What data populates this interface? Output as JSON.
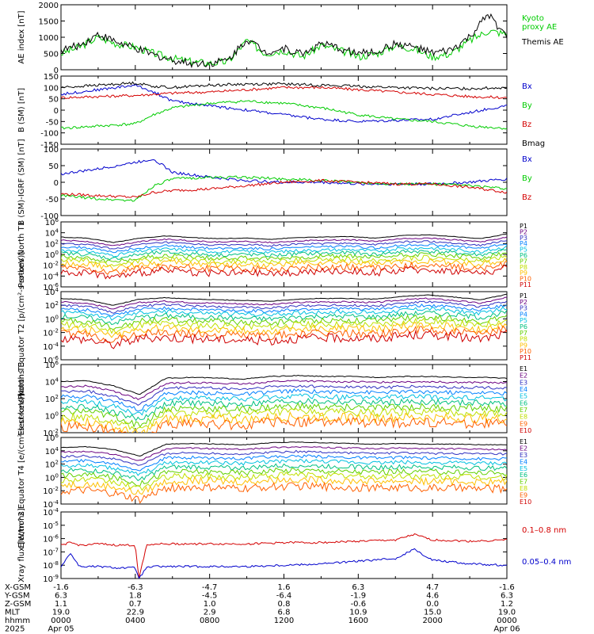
{
  "colors": {
    "black": "#000000",
    "red": "#d40000",
    "blue": "#0000cc",
    "green": "#00cc00",
    "p_ramp": [
      "#000000",
      "#6a0080",
      "#3030c0",
      "#0080ff",
      "#00c0e0",
      "#00c080",
      "#60d000",
      "#c0e000",
      "#ffc000",
      "#ff6000",
      "#d00000"
    ]
  },
  "chart_data": [
    {
      "type": "line",
      "ylabel": "AE index [nT]",
      "ylim": [
        0,
        2000
      ],
      "yticks": [
        {
          "v": 0,
          "t": "0"
        },
        {
          "v": 500,
          "t": "500"
        },
        {
          "v": 1000,
          "t": "1000"
        },
        {
          "v": 1500,
          "t": "1500"
        },
        {
          "v": 2000,
          "t": "2000"
        }
      ],
      "x": [
        0,
        1,
        2,
        3,
        4,
        5,
        6,
        7,
        8,
        9,
        10,
        11,
        12,
        13,
        14,
        15,
        16,
        17,
        18,
        19,
        20,
        21,
        22,
        23,
        24
      ],
      "series": [
        {
          "name": "Kyoto proxy AE",
          "color": "green",
          "values": [
            500,
            700,
            1000,
            800,
            700,
            500,
            350,
            250,
            200,
            250,
            900,
            500,
            600,
            400,
            750,
            600,
            400,
            500,
            750,
            650,
            400,
            500,
            900,
            1200,
            1100
          ]
        },
        {
          "name": "Themis AE",
          "color": "black",
          "values": [
            600,
            750,
            1100,
            850,
            650,
            450,
            300,
            200,
            200,
            300,
            950,
            550,
            650,
            500,
            800,
            650,
            500,
            550,
            800,
            700,
            500,
            600,
            1000,
            1700,
            1000
          ]
        }
      ],
      "legend": [
        {
          "text": "Kyoto\nproxy AE",
          "color": "green"
        },
        {
          "text": "Themis AE",
          "color": "black"
        }
      ]
    },
    {
      "type": "line",
      "ylabel": "B (SM) [nT]",
      "ylim": [
        -150,
        150
      ],
      "yticks": [
        {
          "v": 150,
          "t": "150"
        },
        {
          "v": 100,
          "t": "100"
        },
        {
          "v": 50,
          "t": "50"
        },
        {
          "v": 0,
          "t": "0"
        },
        {
          "v": -50,
          "t": "-50"
        },
        {
          "v": -100,
          "t": "-100"
        },
        {
          "v": -150,
          "t": "-150"
        }
      ],
      "x": [
        0,
        2,
        4,
        5,
        6,
        8,
        10,
        12,
        14,
        16,
        18,
        20,
        22,
        24
      ],
      "series": [
        {
          "name": "Bx",
          "color": "blue",
          "values": [
            70,
            90,
            110,
            80,
            40,
            20,
            0,
            -20,
            -40,
            -50,
            -45,
            -40,
            -10,
            20
          ]
        },
        {
          "name": "By",
          "color": "green",
          "values": [
            -80,
            -70,
            -60,
            -20,
            10,
            30,
            40,
            30,
            10,
            -20,
            -40,
            -50,
            -70,
            -80
          ]
        },
        {
          "name": "Bz",
          "color": "red",
          "values": [
            55,
            60,
            65,
            70,
            75,
            80,
            90,
            100,
            100,
            90,
            80,
            70,
            60,
            55
          ]
        },
        {
          "name": "Bmag",
          "color": "black",
          "values": [
            100,
            110,
            120,
            105,
            100,
            110,
            115,
            115,
            110,
            105,
            100,
            95,
            95,
            100
          ]
        }
      ],
      "legend": [
        {
          "text": "Bx",
          "color": "blue"
        },
        {
          "text": "By",
          "color": "green"
        },
        {
          "text": "Bz",
          "color": "red"
        },
        {
          "text": "Bmag",
          "color": "black"
        }
      ]
    },
    {
      "type": "line",
      "ylabel": "B (SM)-IGRF (SM) [nT]",
      "ylim": [
        -100,
        100
      ],
      "yticks": [
        {
          "v": 100,
          "t": "100"
        },
        {
          "v": 50,
          "t": "50"
        },
        {
          "v": 0,
          "t": "0"
        },
        {
          "v": -50,
          "t": "-50"
        },
        {
          "v": -100,
          "t": "-100"
        }
      ],
      "x": [
        0,
        2,
        4,
        5,
        6,
        8,
        10,
        12,
        14,
        16,
        18,
        20,
        22,
        24
      ],
      "series": [
        {
          "name": "Bx",
          "color": "blue",
          "values": [
            25,
            40,
            60,
            70,
            30,
            15,
            5,
            0,
            0,
            -5,
            -5,
            -5,
            0,
            10
          ]
        },
        {
          "name": "By",
          "color": "green",
          "values": [
            -40,
            -50,
            -55,
            -10,
            10,
            15,
            15,
            10,
            5,
            0,
            -5,
            -5,
            -10,
            -20
          ]
        },
        {
          "name": "Bz",
          "color": "red",
          "values": [
            -35,
            -40,
            -45,
            -30,
            -25,
            -20,
            -10,
            0,
            5,
            0,
            -5,
            -5,
            -15,
            -30
          ]
        }
      ],
      "legend": [
        {
          "text": "Bx",
          "color": "blue"
        },
        {
          "text": "By",
          "color": "green"
        },
        {
          "text": "Bz",
          "color": "red"
        }
      ]
    },
    {
      "type": "line",
      "ylabel": "Protons North T1",
      "yscale": "log",
      "ylim": [
        -6,
        6
      ],
      "yticks": [
        {
          "v": 6,
          "t": "10^6"
        },
        {
          "v": 4,
          "t": "10^4"
        },
        {
          "v": 2,
          "t": "10^2"
        },
        {
          "v": 0,
          "t": "10^0"
        },
        {
          "v": -2,
          "t": "10^-2"
        },
        {
          "v": -4,
          "t": "10^-4"
        },
        {
          "v": -6,
          "t": "10^-6"
        }
      ],
      "profile": [
        3.2,
        3.0,
        2.2,
        3.0,
        3.4,
        3.1,
        2.9,
        3.0,
        2.8,
        3.1,
        3.2,
        3.3,
        3.0,
        3.5,
        3.6,
        3.3,
        2.9,
        3.8
      ],
      "channels": [
        "P1",
        "P2",
        "P3",
        "P4",
        "P5",
        "P6",
        "P7",
        "P8",
        "P9",
        "P10",
        "P11"
      ],
      "offsets": [
        0.0,
        -0.6,
        -1.2,
        -1.8,
        -2.4,
        -3.0,
        -3.6,
        -4.2,
        -4.8,
        -5.6,
        -6.4
      ],
      "legend": [
        {
          "text": "P1",
          "color": "#000000"
        },
        {
          "text": "P2",
          "color": "#6a0080"
        },
        {
          "text": "P3",
          "color": "#3030c0"
        },
        {
          "text": "P4",
          "color": "#0080ff"
        },
        {
          "text": "P5",
          "color": "#00c0e0"
        },
        {
          "text": "P6",
          "color": "#00c080"
        },
        {
          "text": "P7",
          "color": "#60d000"
        },
        {
          "text": "P8",
          "color": "#c0e000"
        },
        {
          "text": "P9",
          "color": "#ffc000"
        },
        {
          "text": "P10",
          "color": "#ff6000"
        },
        {
          "text": "P11",
          "color": "#d00000"
        }
      ]
    },
    {
      "type": "line",
      "ylabel": "Protons Equator T2 [p/(cm²-s-sr-keV)]",
      "yscale": "log",
      "ylim": [
        -6,
        4
      ],
      "yticks": [
        {
          "v": 4,
          "t": "10^4"
        },
        {
          "v": 2,
          "t": "10^2"
        },
        {
          "v": 0,
          "t": "10^0"
        },
        {
          "v": -2,
          "t": "10^-2"
        },
        {
          "v": -4,
          "t": "10^-4"
        },
        {
          "v": -6,
          "t": "10^-6"
        }
      ],
      "profile": [
        3.0,
        2.8,
        2.0,
        2.9,
        3.1,
        2.9,
        2.8,
        2.7,
        2.6,
        2.9,
        3.0,
        3.0,
        2.9,
        3.3,
        3.5,
        3.2,
        2.8,
        3.6
      ],
      "channels": [
        "P1",
        "P2",
        "P3",
        "P4",
        "P5",
        "P6",
        "P7",
        "P8",
        "P9",
        "P10",
        "P11"
      ],
      "offsets": [
        0.0,
        -0.5,
        -1.0,
        -1.5,
        -2.0,
        -2.6,
        -3.2,
        -3.8,
        -4.4,
        -5.1,
        -5.8
      ],
      "legend": [
        {
          "text": "P1",
          "color": "#000000"
        },
        {
          "text": "P2",
          "color": "#6a0080"
        },
        {
          "text": "P3",
          "color": "#3030c0"
        },
        {
          "text": "P4",
          "color": "#0080ff"
        },
        {
          "text": "P5",
          "color": "#00c0e0"
        },
        {
          "text": "P6",
          "color": "#00c080"
        },
        {
          "text": "P7",
          "color": "#60d000"
        },
        {
          "text": "P8",
          "color": "#c0e000"
        },
        {
          "text": "P9",
          "color": "#ffc000"
        },
        {
          "text": "P10",
          "color": "#ff6000"
        },
        {
          "text": "P11",
          "color": "#d00000"
        }
      ]
    },
    {
      "type": "line",
      "ylabel": "Electrons North T3",
      "yscale": "log",
      "ylim": [
        -2,
        6
      ],
      "yticks": [
        {
          "v": 6,
          "t": "10^6"
        },
        {
          "v": 4,
          "t": "10^4"
        },
        {
          "v": 2,
          "t": "10^2"
        },
        {
          "v": 0,
          "t": "10^0"
        },
        {
          "v": -2,
          "t": "10^-2"
        }
      ],
      "profile": [
        4.0,
        4.1,
        3.5,
        2.5,
        4.4,
        4.5,
        4.4,
        4.3,
        4.6,
        4.7,
        4.6,
        4.6,
        4.5,
        4.6,
        4.6,
        4.5,
        4.5,
        4.4
      ],
      "channels": [
        "E1",
        "E2",
        "E3",
        "E4",
        "E5",
        "E6",
        "E7",
        "E8",
        "E9",
        "E10"
      ],
      "offsets": [
        0.0,
        -0.6,
        -1.2,
        -1.8,
        -2.4,
        -3.0,
        -3.6,
        -4.2,
        -4.8,
        -5.4
      ],
      "legend": [
        {
          "text": "E1",
          "color": "#000000"
        },
        {
          "text": "E2",
          "color": "#6a0080"
        },
        {
          "text": "E3",
          "color": "#3030c0"
        },
        {
          "text": "E4",
          "color": "#0080ff"
        },
        {
          "text": "E5",
          "color": "#00c0e0"
        },
        {
          "text": "E6",
          "color": "#00c080"
        },
        {
          "text": "E7",
          "color": "#60d000"
        },
        {
          "text": "E8",
          "color": "#c0e000"
        },
        {
          "text": "E9",
          "color": "#ff6000"
        },
        {
          "text": "E10",
          "color": "#d00000"
        }
      ]
    },
    {
      "type": "line",
      "ylabel": "Electrons Equator T4 [e/(cm²-s-sr-keV)]",
      "yscale": "log",
      "ylim": [
        -4,
        6
      ],
      "yticks": [
        {
          "v": 6,
          "t": "10^6"
        },
        {
          "v": 4,
          "t": "10^4"
        },
        {
          "v": 2,
          "t": "10^2"
        },
        {
          "v": 0,
          "t": "10^0"
        },
        {
          "v": -2,
          "t": "10^-2"
        },
        {
          "v": -4,
          "t": "10^-4"
        }
      ],
      "profile": [
        4.5,
        4.6,
        4.2,
        3.2,
        5.0,
        5.1,
        5.0,
        4.9,
        5.2,
        5.3,
        5.2,
        5.1,
        5.0,
        5.1,
        5.0,
        5.0,
        4.9,
        4.9
      ],
      "channels": [
        "E1",
        "E2",
        "E3",
        "E4",
        "E5",
        "E6",
        "E7",
        "E8",
        "E9",
        "E10"
      ],
      "offsets": [
        0.0,
        -0.7,
        -1.4,
        -2.1,
        -2.8,
        -3.5,
        -4.2,
        -4.9,
        -5.6,
        -6.6
      ],
      "legend": [
        {
          "text": "E1",
          "color": "#000000"
        },
        {
          "text": "E2",
          "color": "#6a0080"
        },
        {
          "text": "E3",
          "color": "#3030c0"
        },
        {
          "text": "E4",
          "color": "#0080ff"
        },
        {
          "text": "E5",
          "color": "#00c0e0"
        },
        {
          "text": "E6",
          "color": "#00c080"
        },
        {
          "text": "E7",
          "color": "#60d000"
        },
        {
          "text": "E8",
          "color": "#c0e000"
        },
        {
          "text": "E9",
          "color": "#ff6000"
        },
        {
          "text": "E10",
          "color": "#d00000"
        }
      ]
    },
    {
      "type": "line",
      "ylabel": "Xray flux [W/m^2]",
      "yscale": "log",
      "ylim": [
        -9,
        -4
      ],
      "yticks": [
        {
          "v": -4,
          "t": "10^-4"
        },
        {
          "v": -5,
          "t": "10^-5"
        },
        {
          "v": -6,
          "t": "10^-6"
        },
        {
          "v": -7,
          "t": "10^-7"
        },
        {
          "v": -8,
          "t": "10^-8"
        },
        {
          "v": -9,
          "t": "10^-9"
        }
      ],
      "x": [
        0,
        0.5,
        1,
        2,
        3,
        4,
        4.2,
        4.6,
        5,
        6,
        8,
        10,
        12,
        14,
        16,
        18,
        19,
        20,
        22,
        24
      ],
      "series": [
        {
          "name": "0.1-0.8 nm",
          "color": "red",
          "values": [
            -6.5,
            -6.3,
            -6.5,
            -6.4,
            -6.5,
            -6.5,
            -9,
            -6.5,
            -6.4,
            -6.4,
            -6.4,
            -6.4,
            -6.3,
            -6.3,
            -6.2,
            -6.1,
            -5.7,
            -6.1,
            -6.2,
            -6.1
          ]
        },
        {
          "name": "0.05-0.4 nm",
          "color": "blue",
          "values": [
            -8.1,
            -7.1,
            -8.1,
            -8.1,
            -8.2,
            -8.2,
            -9,
            -8.2,
            -8.1,
            -8.1,
            -8.1,
            -8.1,
            -8.0,
            -7.9,
            -7.7,
            -7.5,
            -6.8,
            -7.6,
            -7.9,
            -8.0
          ]
        }
      ],
      "legend": [
        {
          "text": "0.1–0.8 nm",
          "color": "red"
        },
        {
          "text": "0.05–0.4 nm",
          "color": "blue"
        }
      ]
    }
  ],
  "xaxis": {
    "rows": [
      {
        "label": "X-GSM",
        "values": [
          "-1.6",
          "-6.3",
          "-4.7",
          "1.6",
          "6.3",
          "4.7",
          "-1.6"
        ]
      },
      {
        "label": "Y-GSM",
        "values": [
          "6.3",
          "1.8",
          "-4.5",
          "-6.4",
          "-1.9",
          "4.6",
          "6.3"
        ]
      },
      {
        "label": "Z-GSM",
        "values": [
          "1.1",
          "0.7",
          "1.0",
          "0.8",
          "-0.6",
          "0.0",
          "1.2"
        ]
      },
      {
        "label": "MLT",
        "values": [
          "19.0",
          "22.9",
          "2.9",
          "6.8",
          "10.9",
          "15.0",
          "19.0"
        ]
      },
      {
        "label": "hhmm",
        "values": [
          "0000",
          "0400",
          "0800",
          "1200",
          "1600",
          "2000",
          "0000"
        ]
      },
      {
        "label": "2025",
        "values": [
          "Apr 05",
          "",
          "",
          "",
          "",
          "",
          "Apr 06"
        ]
      }
    ]
  }
}
